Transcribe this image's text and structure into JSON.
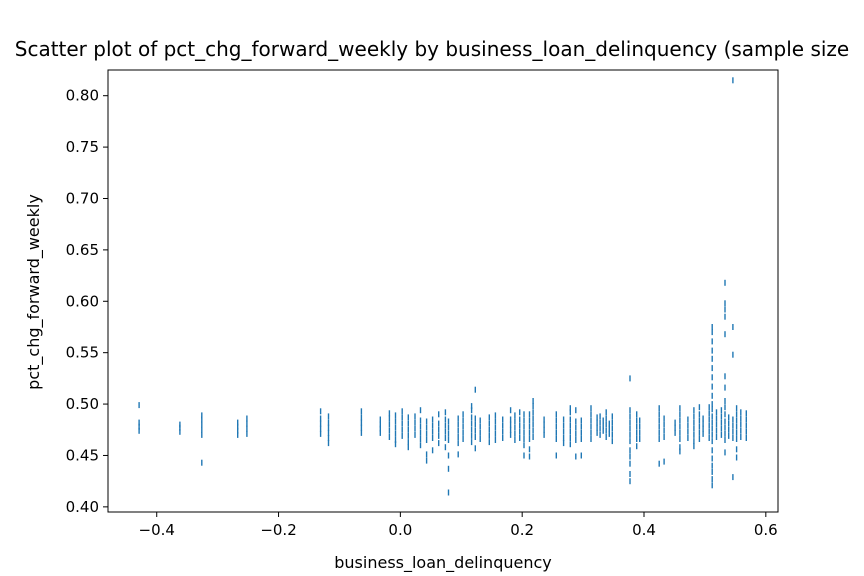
{
  "chart_data": {
    "type": "scatter",
    "title": "Scatter plot of pct_chg_forward_weekly by business_loan_delinquency (sample size",
    "xlabel": "business_loan_delinquency",
    "ylabel": "pct_chg_forward_weekly",
    "xlim": [
      -0.48,
      0.62
    ],
    "ylim": [
      0.395,
      0.825
    ],
    "xticks": [
      -0.4,
      -0.2,
      0.0,
      0.2,
      0.4,
      0.6
    ],
    "xtick_labels": [
      "−0.4",
      "−0.2",
      "0.0",
      "0.2",
      "0.4",
      "0.6"
    ],
    "yticks": [
      0.4,
      0.45,
      0.5,
      0.55,
      0.6,
      0.65,
      0.7,
      0.75,
      0.8
    ],
    "ytick_labels": [
      "0.40",
      "0.45",
      "0.50",
      "0.55",
      "0.60",
      "0.65",
      "0.70",
      "0.75",
      "0.80"
    ],
    "grid": false,
    "marker_color": "#1f77b4",
    "points": [
      [
        -0.429,
        0.474
      ],
      [
        -0.429,
        0.478
      ],
      [
        -0.429,
        0.482
      ],
      [
        -0.429,
        0.499
      ],
      [
        -0.362,
        0.473
      ],
      [
        -0.362,
        0.477
      ],
      [
        -0.362,
        0.48
      ],
      [
        -0.326,
        0.47
      ],
      [
        -0.326,
        0.475
      ],
      [
        -0.326,
        0.48
      ],
      [
        -0.326,
        0.485
      ],
      [
        -0.326,
        0.489
      ],
      [
        -0.326,
        0.443
      ],
      [
        -0.267,
        0.47
      ],
      [
        -0.267,
        0.474
      ],
      [
        -0.267,
        0.478
      ],
      [
        -0.267,
        0.482
      ],
      [
        -0.252,
        0.471
      ],
      [
        -0.252,
        0.476
      ],
      [
        -0.252,
        0.481
      ],
      [
        -0.252,
        0.486
      ],
      [
        -0.131,
        0.471
      ],
      [
        -0.131,
        0.476
      ],
      [
        -0.131,
        0.481
      ],
      [
        -0.131,
        0.486
      ],
      [
        -0.131,
        0.493
      ],
      [
        -0.118,
        0.467
      ],
      [
        -0.118,
        0.472
      ],
      [
        -0.118,
        0.477
      ],
      [
        -0.118,
        0.482
      ],
      [
        -0.118,
        0.488
      ],
      [
        -0.118,
        0.462
      ],
      [
        -0.064,
        0.472
      ],
      [
        -0.064,
        0.477
      ],
      [
        -0.064,
        0.482
      ],
      [
        -0.064,
        0.487
      ],
      [
        -0.064,
        0.493
      ],
      [
        -0.033,
        0.472
      ],
      [
        -0.033,
        0.476
      ],
      [
        -0.033,
        0.48
      ],
      [
        -0.033,
        0.485
      ],
      [
        -0.018,
        0.468
      ],
      [
        -0.018,
        0.474
      ],
      [
        -0.018,
        0.48
      ],
      [
        -0.018,
        0.486
      ],
      [
        -0.018,
        0.491
      ],
      [
        -0.008,
        0.465
      ],
      [
        -0.008,
        0.471
      ],
      [
        -0.008,
        0.477
      ],
      [
        -0.008,
        0.483
      ],
      [
        -0.008,
        0.489
      ],
      [
        -0.008,
        0.461
      ],
      [
        0.003,
        0.469
      ],
      [
        0.003,
        0.475
      ],
      [
        0.003,
        0.481
      ],
      [
        0.003,
        0.487
      ],
      [
        0.003,
        0.493
      ],
      [
        0.013,
        0.463
      ],
      [
        0.013,
        0.469
      ],
      [
        0.013,
        0.475
      ],
      [
        0.013,
        0.481
      ],
      [
        0.013,
        0.487
      ],
      [
        0.013,
        0.458
      ],
      [
        0.024,
        0.47
      ],
      [
        0.024,
        0.476
      ],
      [
        0.024,
        0.482
      ],
      [
        0.024,
        0.488
      ],
      [
        0.033,
        0.46
      ],
      [
        0.033,
        0.466
      ],
      [
        0.033,
        0.472
      ],
      [
        0.033,
        0.478
      ],
      [
        0.033,
        0.484
      ],
      [
        0.033,
        0.494
      ],
      [
        0.043,
        0.465
      ],
      [
        0.043,
        0.471
      ],
      [
        0.043,
        0.477
      ],
      [
        0.043,
        0.483
      ],
      [
        0.043,
        0.451
      ],
      [
        0.043,
        0.445
      ],
      [
        0.053,
        0.467
      ],
      [
        0.053,
        0.473
      ],
      [
        0.053,
        0.479
      ],
      [
        0.053,
        0.485
      ],
      [
        0.053,
        0.455
      ],
      [
        0.063,
        0.469
      ],
      [
        0.063,
        0.475
      ],
      [
        0.063,
        0.481
      ],
      [
        0.063,
        0.49
      ],
      [
        0.063,
        0.462
      ],
      [
        0.074,
        0.467
      ],
      [
        0.074,
        0.473
      ],
      [
        0.074,
        0.479
      ],
      [
        0.074,
        0.485
      ],
      [
        0.074,
        0.458
      ],
      [
        0.074,
        0.492
      ],
      [
        0.079,
        0.465
      ],
      [
        0.079,
        0.471
      ],
      [
        0.079,
        0.477
      ],
      [
        0.079,
        0.483
      ],
      [
        0.079,
        0.45
      ],
      [
        0.079,
        0.437
      ],
      [
        0.079,
        0.414
      ],
      [
        0.095,
        0.462
      ],
      [
        0.095,
        0.468
      ],
      [
        0.095,
        0.474
      ],
      [
        0.095,
        0.48
      ],
      [
        0.095,
        0.486
      ],
      [
        0.095,
        0.451
      ],
      [
        0.103,
        0.466
      ],
      [
        0.103,
        0.472
      ],
      [
        0.103,
        0.478
      ],
      [
        0.103,
        0.484
      ],
      [
        0.103,
        0.49
      ],
      [
        0.117,
        0.463
      ],
      [
        0.117,
        0.469
      ],
      [
        0.117,
        0.475
      ],
      [
        0.117,
        0.481
      ],
      [
        0.117,
        0.487
      ],
      [
        0.117,
        0.494
      ],
      [
        0.117,
        0.498
      ],
      [
        0.123,
        0.468
      ],
      [
        0.123,
        0.474
      ],
      [
        0.123,
        0.48
      ],
      [
        0.123,
        0.486
      ],
      [
        0.123,
        0.514
      ],
      [
        0.123,
        0.457
      ],
      [
        0.131,
        0.466
      ],
      [
        0.131,
        0.472
      ],
      [
        0.131,
        0.478
      ],
      [
        0.131,
        0.484
      ],
      [
        0.146,
        0.463
      ],
      [
        0.146,
        0.469
      ],
      [
        0.146,
        0.475
      ],
      [
        0.146,
        0.481
      ],
      [
        0.146,
        0.487
      ],
      [
        0.156,
        0.465
      ],
      [
        0.156,
        0.471
      ],
      [
        0.156,
        0.477
      ],
      [
        0.156,
        0.483
      ],
      [
        0.156,
        0.489
      ],
      [
        0.168,
        0.467
      ],
      [
        0.168,
        0.473
      ],
      [
        0.168,
        0.479
      ],
      [
        0.168,
        0.485
      ],
      [
        0.181,
        0.47
      ],
      [
        0.181,
        0.475
      ],
      [
        0.181,
        0.48
      ],
      [
        0.181,
        0.485
      ],
      [
        0.181,
        0.494
      ],
      [
        0.188,
        0.465
      ],
      [
        0.188,
        0.471
      ],
      [
        0.188,
        0.477
      ],
      [
        0.188,
        0.483
      ],
      [
        0.188,
        0.489
      ],
      [
        0.196,
        0.467
      ],
      [
        0.196,
        0.473
      ],
      [
        0.196,
        0.479
      ],
      [
        0.196,
        0.485
      ],
      [
        0.196,
        0.492
      ],
      [
        0.203,
        0.466
      ],
      [
        0.203,
        0.472
      ],
      [
        0.203,
        0.478
      ],
      [
        0.203,
        0.484
      ],
      [
        0.203,
        0.49
      ],
      [
        0.203,
        0.46
      ],
      [
        0.203,
        0.45
      ],
      [
        0.212,
        0.466
      ],
      [
        0.212,
        0.472
      ],
      [
        0.212,
        0.478
      ],
      [
        0.212,
        0.484
      ],
      [
        0.212,
        0.49
      ],
      [
        0.212,
        0.456
      ],
      [
        0.212,
        0.449
      ],
      [
        0.218,
        0.468
      ],
      [
        0.218,
        0.474
      ],
      [
        0.218,
        0.48
      ],
      [
        0.218,
        0.486
      ],
      [
        0.218,
        0.492
      ],
      [
        0.218,
        0.498
      ],
      [
        0.218,
        0.503
      ],
      [
        0.236,
        0.47
      ],
      [
        0.236,
        0.475
      ],
      [
        0.236,
        0.48
      ],
      [
        0.236,
        0.485
      ],
      [
        0.256,
        0.466
      ],
      [
        0.256,
        0.472
      ],
      [
        0.256,
        0.478
      ],
      [
        0.256,
        0.484
      ],
      [
        0.256,
        0.49
      ],
      [
        0.256,
        0.45
      ],
      [
        0.268,
        0.467
      ],
      [
        0.268,
        0.473
      ],
      [
        0.268,
        0.479
      ],
      [
        0.268,
        0.485
      ],
      [
        0.268,
        0.462
      ],
      [
        0.279,
        0.461
      ],
      [
        0.279,
        0.467
      ],
      [
        0.279,
        0.473
      ],
      [
        0.279,
        0.479
      ],
      [
        0.279,
        0.485
      ],
      [
        0.279,
        0.492
      ],
      [
        0.279,
        0.496
      ],
      [
        0.288,
        0.465
      ],
      [
        0.288,
        0.471
      ],
      [
        0.288,
        0.477
      ],
      [
        0.288,
        0.483
      ],
      [
        0.288,
        0.494
      ],
      [
        0.288,
        0.449
      ],
      [
        0.297,
        0.466
      ],
      [
        0.297,
        0.472
      ],
      [
        0.297,
        0.478
      ],
      [
        0.297,
        0.484
      ],
      [
        0.297,
        0.45
      ],
      [
        0.313,
        0.466
      ],
      [
        0.313,
        0.472
      ],
      [
        0.313,
        0.478
      ],
      [
        0.313,
        0.484
      ],
      [
        0.313,
        0.49
      ],
      [
        0.313,
        0.496
      ],
      [
        0.323,
        0.472
      ],
      [
        0.323,
        0.477
      ],
      [
        0.323,
        0.482
      ],
      [
        0.323,
        0.487
      ],
      [
        0.328,
        0.47
      ],
      [
        0.328,
        0.476
      ],
      [
        0.328,
        0.482
      ],
      [
        0.328,
        0.488
      ],
      [
        0.333,
        0.474
      ],
      [
        0.333,
        0.479
      ],
      [
        0.333,
        0.484
      ],
      [
        0.338,
        0.468
      ],
      [
        0.338,
        0.474
      ],
      [
        0.338,
        0.48
      ],
      [
        0.338,
        0.486
      ],
      [
        0.338,
        0.492
      ],
      [
        0.343,
        0.471
      ],
      [
        0.343,
        0.476
      ],
      [
        0.343,
        0.481
      ],
      [
        0.348,
        0.464
      ],
      [
        0.348,
        0.47
      ],
      [
        0.348,
        0.476
      ],
      [
        0.348,
        0.482
      ],
      [
        0.348,
        0.488
      ],
      [
        0.377,
        0.464
      ],
      [
        0.377,
        0.47
      ],
      [
        0.377,
        0.476
      ],
      [
        0.377,
        0.482
      ],
      [
        0.377,
        0.488
      ],
      [
        0.377,
        0.494
      ],
      [
        0.377,
        0.455
      ],
      [
        0.377,
        0.449
      ],
      [
        0.377,
        0.442
      ],
      [
        0.377,
        0.432
      ],
      [
        0.377,
        0.425
      ],
      [
        0.377,
        0.525
      ],
      [
        0.388,
        0.466
      ],
      [
        0.388,
        0.472
      ],
      [
        0.388,
        0.478
      ],
      [
        0.388,
        0.484
      ],
      [
        0.388,
        0.49
      ],
      [
        0.388,
        0.459
      ],
      [
        0.393,
        0.466
      ],
      [
        0.393,
        0.472
      ],
      [
        0.393,
        0.478
      ],
      [
        0.393,
        0.484
      ],
      [
        0.425,
        0.466
      ],
      [
        0.425,
        0.472
      ],
      [
        0.425,
        0.478
      ],
      [
        0.425,
        0.484
      ],
      [
        0.425,
        0.49
      ],
      [
        0.425,
        0.496
      ],
      [
        0.425,
        0.442
      ],
      [
        0.433,
        0.468
      ],
      [
        0.433,
        0.474
      ],
      [
        0.433,
        0.48
      ],
      [
        0.433,
        0.486
      ],
      [
        0.433,
        0.444
      ],
      [
        0.451,
        0.472
      ],
      [
        0.451,
        0.477
      ],
      [
        0.451,
        0.482
      ],
      [
        0.459,
        0.466
      ],
      [
        0.459,
        0.472
      ],
      [
        0.459,
        0.478
      ],
      [
        0.459,
        0.484
      ],
      [
        0.459,
        0.49
      ],
      [
        0.459,
        0.496
      ],
      [
        0.459,
        0.458
      ],
      [
        0.459,
        0.454
      ],
      [
        0.472,
        0.467
      ],
      [
        0.472,
        0.473
      ],
      [
        0.472,
        0.479
      ],
      [
        0.472,
        0.485
      ],
      [
        0.482,
        0.464
      ],
      [
        0.482,
        0.47
      ],
      [
        0.482,
        0.476
      ],
      [
        0.482,
        0.482
      ],
      [
        0.482,
        0.488
      ],
      [
        0.482,
        0.494
      ],
      [
        0.482,
        0.459
      ],
      [
        0.491,
        0.466
      ],
      [
        0.491,
        0.472
      ],
      [
        0.491,
        0.478
      ],
      [
        0.491,
        0.484
      ],
      [
        0.491,
        0.49
      ],
      [
        0.491,
        0.497
      ],
      [
        0.497,
        0.471
      ],
      [
        0.497,
        0.476
      ],
      [
        0.497,
        0.481
      ],
      [
        0.497,
        0.486
      ],
      [
        0.507,
        0.467
      ],
      [
        0.507,
        0.473
      ],
      [
        0.507,
        0.479
      ],
      [
        0.507,
        0.485
      ],
      [
        0.507,
        0.491
      ],
      [
        0.507,
        0.497
      ],
      [
        0.512,
        0.464
      ],
      [
        0.512,
        0.47
      ],
      [
        0.512,
        0.476
      ],
      [
        0.512,
        0.482
      ],
      [
        0.512,
        0.488
      ],
      [
        0.512,
        0.495
      ],
      [
        0.512,
        0.455
      ],
      [
        0.512,
        0.447
      ],
      [
        0.512,
        0.44
      ],
      [
        0.512,
        0.434
      ],
      [
        0.512,
        0.427
      ],
      [
        0.512,
        0.421
      ],
      [
        0.512,
        0.5
      ],
      [
        0.512,
        0.508
      ],
      [
        0.512,
        0.517
      ],
      [
        0.512,
        0.526
      ],
      [
        0.512,
        0.535
      ],
      [
        0.512,
        0.544
      ],
      [
        0.512,
        0.552
      ],
      [
        0.512,
        0.561
      ],
      [
        0.512,
        0.57
      ],
      [
        0.512,
        0.575
      ],
      [
        0.519,
        0.468
      ],
      [
        0.519,
        0.474
      ],
      [
        0.519,
        0.48
      ],
      [
        0.519,
        0.486
      ],
      [
        0.519,
        0.492
      ],
      [
        0.527,
        0.47
      ],
      [
        0.527,
        0.476
      ],
      [
        0.527,
        0.482
      ],
      [
        0.527,
        0.488
      ],
      [
        0.527,
        0.494
      ],
      [
        0.533,
        0.465
      ],
      [
        0.533,
        0.471
      ],
      [
        0.533,
        0.477
      ],
      [
        0.533,
        0.483
      ],
      [
        0.533,
        0.49
      ],
      [
        0.533,
        0.497
      ],
      [
        0.533,
        0.503
      ],
      [
        0.533,
        0.516
      ],
      [
        0.533,
        0.527
      ],
      [
        0.533,
        0.568
      ],
      [
        0.533,
        0.585
      ],
      [
        0.533,
        0.592
      ],
      [
        0.533,
        0.598
      ],
      [
        0.533,
        0.618
      ],
      [
        0.533,
        0.453
      ],
      [
        0.539,
        0.469
      ],
      [
        0.539,
        0.475
      ],
      [
        0.539,
        0.481
      ],
      [
        0.539,
        0.487
      ],
      [
        0.546,
        0.467
      ],
      [
        0.546,
        0.473
      ],
      [
        0.546,
        0.479
      ],
      [
        0.546,
        0.485
      ],
      [
        0.546,
        0.548
      ],
      [
        0.546,
        0.575
      ],
      [
        0.546,
        0.429
      ],
      [
        0.546,
        0.815
      ],
      [
        0.552,
        0.466
      ],
      [
        0.552,
        0.472
      ],
      [
        0.552,
        0.478
      ],
      [
        0.552,
        0.484
      ],
      [
        0.552,
        0.49
      ],
      [
        0.552,
        0.496
      ],
      [
        0.552,
        0.456
      ],
      [
        0.552,
        0.448
      ],
      [
        0.559,
        0.468
      ],
      [
        0.559,
        0.474
      ],
      [
        0.559,
        0.48
      ],
      [
        0.559,
        0.486
      ],
      [
        0.559,
        0.492
      ],
      [
        0.568,
        0.467
      ],
      [
        0.568,
        0.473
      ],
      [
        0.568,
        0.479
      ],
      [
        0.568,
        0.485
      ],
      [
        0.568,
        0.491
      ]
    ]
  }
}
